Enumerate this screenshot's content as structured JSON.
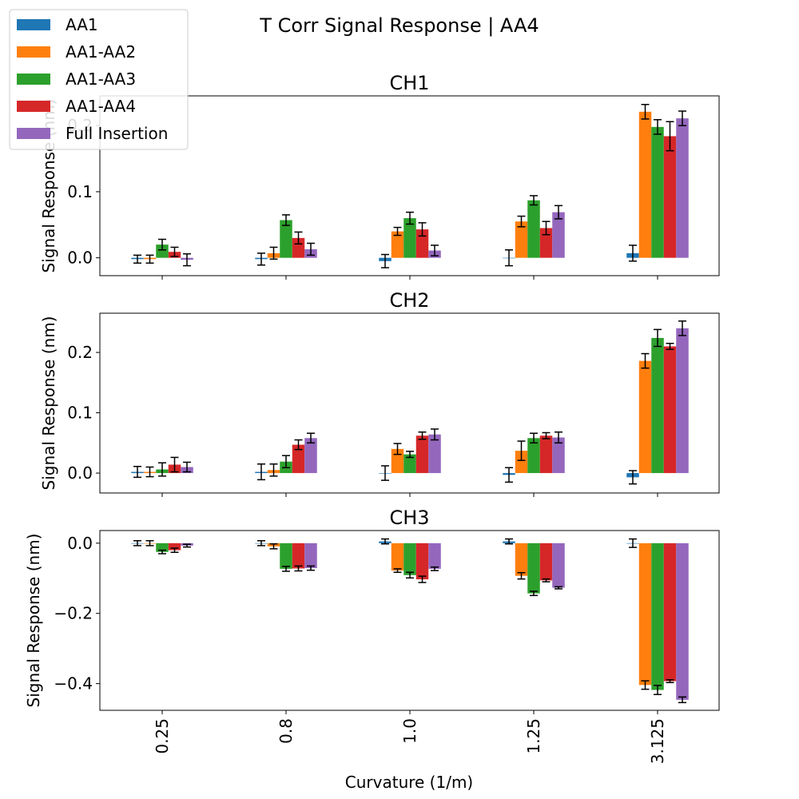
{
  "figure_title": "T Corr Signal Response | AA4",
  "legend": {
    "entries": [
      {
        "label": "AA1",
        "color": "#1f77b4"
      },
      {
        "label": "AA1-AA2",
        "color": "#ff7f0e"
      },
      {
        "label": "AA1-AA3",
        "color": "#2ca02c"
      },
      {
        "label": "AA1-AA4",
        "color": "#d62728"
      },
      {
        "label": "Full Insertion",
        "color": "#9467bd"
      }
    ],
    "placement": "top-left"
  },
  "xlabel": "Curvature (1/m)",
  "chart_data": [
    {
      "type": "bar",
      "title": "CH1",
      "ylabel": "Signal Response (nm)",
      "categories": [
        "0.25",
        "0.8",
        "1.0",
        "1.25",
        "3.125"
      ],
      "ylim": [
        -0.027,
        0.245
      ],
      "yticks": [
        0.0,
        0.1,
        0.2
      ],
      "yticklabels": [
        "0.0",
        "0.1",
        "0.2"
      ],
      "series": [
        {
          "name": "AA1",
          "values": [
            -0.002,
            -0.002,
            -0.005,
            0.0,
            0.007
          ],
          "errors": [
            0.006,
            0.009,
            0.01,
            0.012,
            0.012
          ]
        },
        {
          "name": "AA1-AA2",
          "values": [
            -0.002,
            0.007,
            0.04,
            0.055,
            0.221
          ],
          "errors": [
            0.006,
            0.009,
            0.006,
            0.008,
            0.011
          ]
        },
        {
          "name": "AA1-AA3",
          "values": [
            0.02,
            0.057,
            0.06,
            0.087,
            0.198
          ],
          "errors": [
            0.008,
            0.008,
            0.009,
            0.007,
            0.011
          ]
        },
        {
          "name": "AA1-AA4",
          "values": [
            0.009,
            0.03,
            0.043,
            0.045,
            0.184
          ],
          "errors": [
            0.007,
            0.009,
            0.01,
            0.01,
            0.022
          ]
        },
        {
          "name": "Full Insertion",
          "values": [
            -0.003,
            0.013,
            0.011,
            0.069,
            0.211
          ],
          "errors": [
            0.009,
            0.009,
            0.008,
            0.01,
            0.011
          ]
        }
      ]
    },
    {
      "type": "bar",
      "title": "CH2",
      "ylabel": "Signal Response (nm)",
      "categories": [
        "0.25",
        "0.8",
        "1.0",
        "1.25",
        "3.125"
      ],
      "ylim": [
        -0.033,
        0.265
      ],
      "yticks": [
        0.0,
        0.1,
        0.2
      ],
      "yticklabels": [
        "0.0",
        "0.1",
        "0.2"
      ],
      "series": [
        {
          "name": "AA1",
          "values": [
            0.002,
            0.002,
            0.0,
            -0.003,
            -0.007
          ],
          "errors": [
            0.009,
            0.013,
            0.012,
            0.012,
            0.011
          ]
        },
        {
          "name": "AA1-AA2",
          "values": [
            0.002,
            0.005,
            0.04,
            0.037,
            0.186
          ],
          "errors": [
            0.008,
            0.01,
            0.009,
            0.016,
            0.012
          ]
        },
        {
          "name": "AA1-AA3",
          "values": [
            0.006,
            0.019,
            0.031,
            0.058,
            0.224
          ],
          "errors": [
            0.011,
            0.01,
            0.005,
            0.008,
            0.014
          ]
        },
        {
          "name": "AA1-AA4",
          "values": [
            0.014,
            0.047,
            0.062,
            0.062,
            0.21
          ],
          "errors": [
            0.012,
            0.008,
            0.006,
            0.005,
            0.005
          ]
        },
        {
          "name": "Full Insertion",
          "values": [
            0.01,
            0.058,
            0.064,
            0.059,
            0.24
          ],
          "errors": [
            0.008,
            0.008,
            0.009,
            0.009,
            0.012
          ]
        }
      ]
    },
    {
      "type": "bar",
      "title": "CH3",
      "ylabel": "Signal Response (nm)",
      "categories": [
        "0.25",
        "0.8",
        "1.0",
        "1.25",
        "3.125"
      ],
      "ylim": [
        -0.476,
        0.036
      ],
      "yticks": [
        0.0,
        -0.2,
        -0.4
      ],
      "yticklabels": [
        "0.0",
        "−0.2",
        "−0.4"
      ],
      "series": [
        {
          "name": "AA1",
          "values": [
            0.0,
            0.0,
            0.005,
            0.005,
            0.0
          ],
          "errors": [
            0.007,
            0.007,
            0.007,
            0.007,
            0.012
          ]
        },
        {
          "name": "AA1-AA2",
          "values": [
            0.0,
            -0.009,
            -0.078,
            -0.093,
            -0.404
          ],
          "errors": [
            0.007,
            0.007,
            0.005,
            0.009,
            0.012
          ]
        },
        {
          "name": "AA1-AA3",
          "values": [
            -0.025,
            -0.073,
            -0.091,
            -0.143,
            -0.418
          ],
          "errors": [
            0.005,
            0.007,
            0.008,
            0.006,
            0.013
          ]
        },
        {
          "name": "AA1-AA4",
          "values": [
            -0.02,
            -0.072,
            -0.103,
            -0.106,
            -0.393
          ],
          "errors": [
            0.006,
            0.007,
            0.009,
            0.004,
            0.004
          ]
        },
        {
          "name": "Full Insertion",
          "values": [
            -0.007,
            -0.071,
            -0.073,
            -0.127,
            -0.446
          ],
          "errors": [
            0.004,
            0.006,
            0.005,
            0.003,
            0.008
          ]
        }
      ]
    }
  ]
}
